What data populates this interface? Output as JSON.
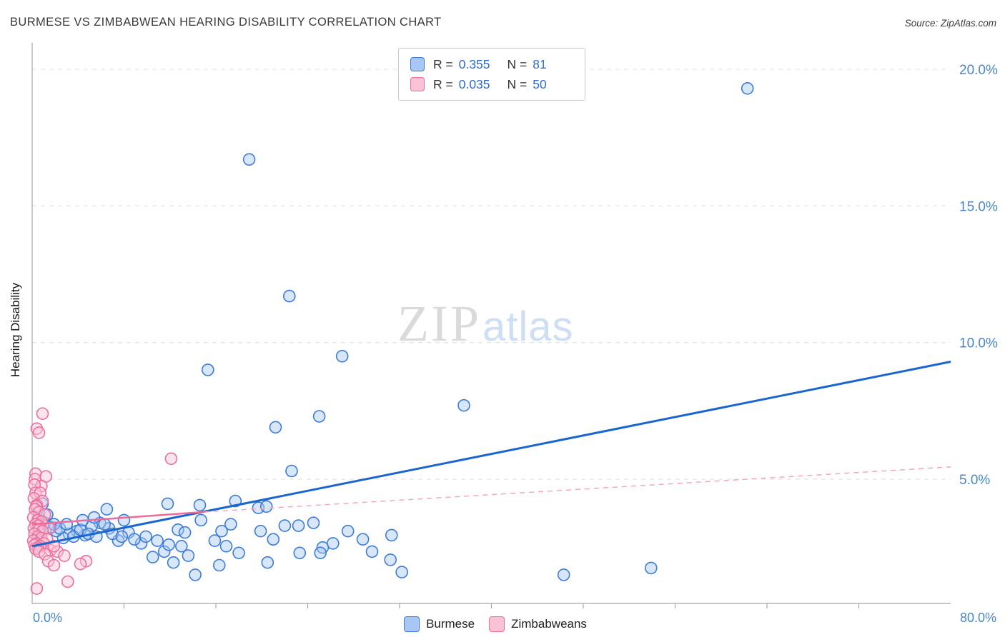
{
  "header": {
    "title": "BURMESE VS ZIMBABWEAN HEARING DISABILITY CORRELATION CHART",
    "source": "Source: ZipAtlas.com"
  },
  "watermark": {
    "zip": "ZIP",
    "atlas": "atlas"
  },
  "axes": {
    "ylabel": "Hearing Disability",
    "y_ticks": [
      {
        "value": 20,
        "label": "20.0%"
      },
      {
        "value": 15,
        "label": "15.0%"
      },
      {
        "value": 10,
        "label": "10.0%"
      },
      {
        "value": 5,
        "label": "5.0%"
      }
    ],
    "x_left_label": "0.0%",
    "x_right_label": "80.0%"
  },
  "legend_box": {
    "rows": [
      {
        "series": "Burmese",
        "r_label": "R =",
        "r_value": "0.355",
        "n_label": "N =",
        "n_value": "81"
      },
      {
        "series": "Zimbabweans",
        "r_label": "R =",
        "r_value": "0.035",
        "n_label": "N =",
        "n_value": "50"
      }
    ]
  },
  "bottom_legend": {
    "items": [
      {
        "label": "Burmese"
      },
      {
        "label": "Zimbabweans"
      }
    ]
  },
  "chart_data": {
    "type": "scatter",
    "title": "BURMESE VS ZIMBABWEAN HEARING DISABILITY CORRELATION CHART",
    "xlabel": "",
    "ylabel": "Hearing Disability",
    "xlim": [
      0,
      80
    ],
    "ylim": [
      0,
      21
    ],
    "grid": "horizontal-dashed",
    "legend_position": "top-center",
    "x_ticks": [
      8,
      16,
      24,
      32,
      40,
      48,
      56,
      64,
      72
    ],
    "y_gridlines": [
      5,
      10,
      15,
      20
    ],
    "colors": {
      "grid": "#dcdcdc",
      "axis": "#a6a6a6",
      "tick_text": "#4a86c8"
    },
    "series": [
      {
        "name": "Burmese",
        "R": 0.355,
        "N": 81,
        "fill": "#a8c7f5",
        "stroke": "#3d7bd9",
        "points": [
          [
            62.3,
            19.3
          ],
          [
            18.9,
            16.7
          ],
          [
            22.4,
            11.7
          ],
          [
            27.0,
            9.5
          ],
          [
            15.3,
            9.0
          ],
          [
            37.6,
            7.7
          ],
          [
            25.0,
            7.3
          ],
          [
            21.2,
            6.9
          ],
          [
            22.6,
            5.3
          ],
          [
            14.6,
            4.05
          ],
          [
            17.7,
            4.2
          ],
          [
            19.7,
            3.95
          ],
          [
            20.4,
            4.0
          ],
          [
            23.2,
            3.3
          ],
          [
            24.5,
            3.4
          ],
          [
            21.0,
            2.8
          ],
          [
            26.2,
            2.65
          ],
          [
            25.3,
            2.5
          ],
          [
            27.5,
            3.1
          ],
          [
            23.3,
            2.3
          ],
          [
            25.1,
            2.3
          ],
          [
            28.8,
            2.8
          ],
          [
            29.6,
            2.35
          ],
          [
            31.3,
            2.95
          ],
          [
            31.2,
            2.05
          ],
          [
            14.7,
            3.5
          ],
          [
            15.9,
            2.75
          ],
          [
            16.5,
            3.1
          ],
          [
            18.0,
            2.3
          ],
          [
            19.9,
            3.1
          ],
          [
            16.9,
            2.55
          ],
          [
            17.3,
            3.35
          ],
          [
            22.0,
            3.3
          ],
          [
            11.8,
            4.1
          ],
          [
            13.0,
            2.55
          ],
          [
            13.6,
            2.2
          ],
          [
            11.5,
            2.35
          ],
          [
            10.5,
            2.15
          ],
          [
            12.3,
            1.95
          ],
          [
            9.5,
            2.65
          ],
          [
            8.4,
            3.05
          ],
          [
            7.5,
            2.75
          ],
          [
            6.7,
            3.2
          ],
          [
            5.9,
            3.4
          ],
          [
            5.2,
            3.3
          ],
          [
            4.6,
            2.95
          ],
          [
            3.9,
            3.1
          ],
          [
            3.2,
            3.0
          ],
          [
            2.7,
            2.85
          ],
          [
            2.1,
            3.1
          ],
          [
            1.6,
            3.25
          ],
          [
            1.1,
            3.4
          ],
          [
            0.6,
            3.6
          ],
          [
            0.9,
            4.1
          ],
          [
            1.3,
            3.7
          ],
          [
            1.9,
            3.35
          ],
          [
            2.4,
            3.2
          ],
          [
            3.0,
            3.35
          ],
          [
            3.6,
            2.9
          ],
          [
            4.2,
            3.15
          ],
          [
            4.9,
            3.0
          ],
          [
            5.6,
            2.9
          ],
          [
            6.3,
            3.35
          ],
          [
            7.0,
            3.0
          ],
          [
            7.8,
            2.9
          ],
          [
            8.9,
            2.8
          ],
          [
            9.9,
            2.9
          ],
          [
            10.9,
            2.75
          ],
          [
            11.9,
            2.6
          ],
          [
            6.5,
            3.9
          ],
          [
            5.4,
            3.6
          ],
          [
            4.4,
            3.5
          ],
          [
            12.7,
            3.15
          ],
          [
            13.3,
            3.05
          ],
          [
            8.0,
            3.5
          ],
          [
            14.2,
            1.5
          ],
          [
            16.3,
            1.85
          ],
          [
            20.5,
            1.95
          ],
          [
            32.2,
            1.6
          ],
          [
            46.3,
            1.5
          ],
          [
            53.9,
            1.75
          ]
        ]
      },
      {
        "name": "Zimbabweans",
        "R": 0.035,
        "N": 50,
        "fill": "#fac3d5",
        "stroke": "#ec6f9f",
        "points": [
          [
            0.9,
            7.4
          ],
          [
            0.4,
            6.85
          ],
          [
            0.6,
            6.7
          ],
          [
            12.1,
            5.75
          ],
          [
            0.3,
            5.2
          ],
          [
            1.2,
            5.1
          ],
          [
            0.25,
            5.0
          ],
          [
            0.8,
            4.75
          ],
          [
            0.2,
            4.8
          ],
          [
            0.3,
            4.5
          ],
          [
            0.7,
            4.5
          ],
          [
            0.15,
            4.3
          ],
          [
            0.9,
            4.2
          ],
          [
            0.4,
            4.05
          ],
          [
            0.35,
            4.0
          ],
          [
            0.25,
            3.9
          ],
          [
            0.6,
            3.8
          ],
          [
            1.1,
            3.7
          ],
          [
            0.1,
            3.6
          ],
          [
            0.5,
            3.5
          ],
          [
            0.8,
            3.45
          ],
          [
            0.3,
            3.35
          ],
          [
            0.55,
            3.3
          ],
          [
            0.15,
            3.2
          ],
          [
            1.5,
            3.2
          ],
          [
            0.6,
            3.15
          ],
          [
            0.9,
            3.1
          ],
          [
            0.2,
            3.0
          ],
          [
            0.5,
            2.9
          ],
          [
            0.8,
            2.85
          ],
          [
            1.3,
            2.8
          ],
          [
            0.1,
            2.75
          ],
          [
            0.4,
            2.65
          ],
          [
            1.0,
            2.65
          ],
          [
            0.2,
            2.6
          ],
          [
            0.7,
            2.55
          ],
          [
            0.5,
            2.5
          ],
          [
            0.3,
            2.45
          ],
          [
            1.6,
            2.4
          ],
          [
            0.6,
            2.35
          ],
          [
            2.2,
            2.35
          ],
          [
            1.1,
            2.25
          ],
          [
            2.8,
            2.2
          ],
          [
            1.9,
            2.55
          ],
          [
            1.4,
            2.0
          ],
          [
            4.7,
            2.0
          ],
          [
            4.2,
            1.9
          ],
          [
            1.9,
            1.85
          ],
          [
            3.1,
            1.25
          ],
          [
            0.4,
            1.0
          ]
        ]
      }
    ],
    "trend_lines": [
      {
        "name": "burmese-trend-line",
        "x1": 0,
        "y1": 2.55,
        "x2": 80,
        "y2": 9.3,
        "color": "#1a66ce",
        "width": 3,
        "dash": ""
      },
      {
        "name": "zimbabwean-trend-line",
        "x1": 0,
        "y1": 3.35,
        "x2": 15,
        "y2": 3.8,
        "color": "#ed6c96",
        "width": 2.5,
        "dash": ""
      },
      {
        "name": "zimbabwean-trend-projection",
        "x1": 15,
        "y1": 3.8,
        "x2": 80,
        "y2": 5.45,
        "color": "#f4a7be",
        "width": 1.5,
        "dash": "7 6"
      }
    ]
  }
}
